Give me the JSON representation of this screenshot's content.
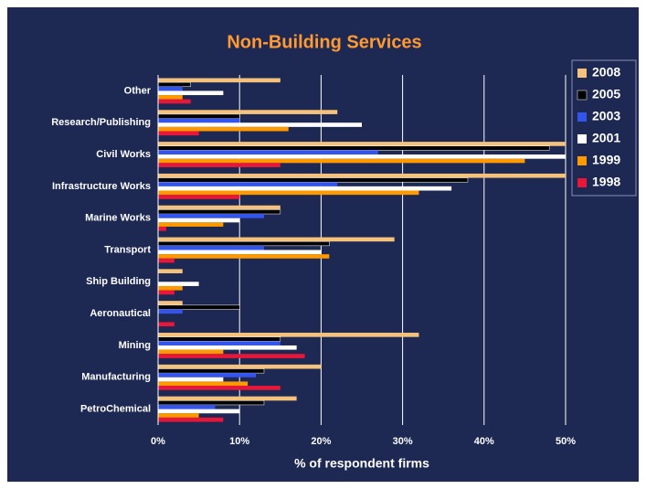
{
  "chart_data": {
    "type": "bar",
    "orientation": "horizontal",
    "title": "Non-Building Services",
    "x_label": "% of respondent firms",
    "categories": [
      "Other",
      "Research/Publishing",
      "Civil Works",
      "Infrastructure Works",
      "Marine Works",
      "Transport",
      "Ship Building",
      "Aeronautical",
      "Mining",
      "Manufacturing",
      "PetroChemical"
    ],
    "series": [
      {
        "name": "2008",
        "color": "#f5c27d",
        "values": [
          15,
          22,
          50,
          50,
          15,
          29,
          3,
          3,
          32,
          20,
          17
        ]
      },
      {
        "name": "2005",
        "color": "#000000",
        "values": [
          4,
          10,
          48,
          38,
          15,
          21,
          0,
          10,
          15,
          13,
          13
        ]
      },
      {
        "name": "2003",
        "color": "#3355ee",
        "values": [
          3,
          10,
          27,
          22,
          13,
          13,
          0,
          3,
          15,
          12,
          7
        ]
      },
      {
        "name": "2001",
        "color": "#ffffff",
        "values": [
          8,
          25,
          50,
          36,
          10,
          20,
          5,
          0,
          17,
          8,
          10
        ]
      },
      {
        "name": "1999",
        "color": "#ff9900",
        "values": [
          3,
          16,
          45,
          32,
          8,
          21,
          3,
          0,
          8,
          11,
          5
        ]
      },
      {
        "name": "1998",
        "color": "#e8173a",
        "values": [
          4,
          5,
          15,
          10,
          1,
          2,
          2,
          2,
          18,
          15,
          8
        ]
      }
    ],
    "xlim": [
      0,
      50
    ],
    "xticks": [
      {
        "value": 0,
        "label": "0%"
      },
      {
        "value": 10,
        "label": "10%"
      },
      {
        "value": 20,
        "label": "20%"
      },
      {
        "value": 30,
        "label": "30%"
      },
      {
        "value": 40,
        "label": "40%"
      },
      {
        "value": 50,
        "label": "50%"
      }
    ],
    "grid": true,
    "legend": "right"
  }
}
